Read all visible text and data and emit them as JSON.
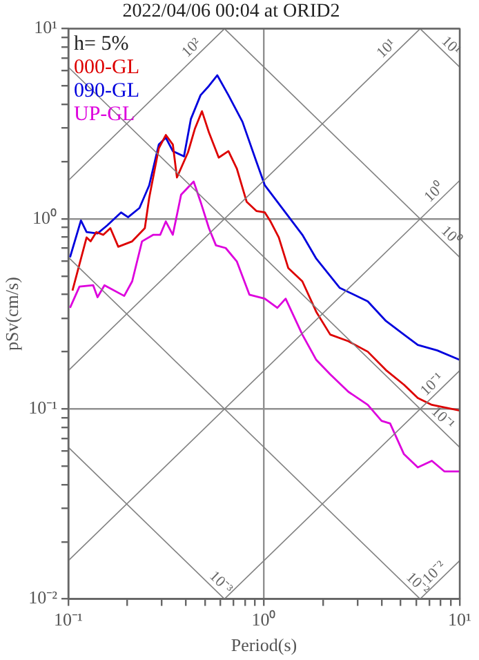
{
  "chart_data": {
    "type": "line",
    "title": "2022/04/06 00:04 at ORID2",
    "xlabel": "Period(s)",
    "ylabel": "pSv(cm/s)",
    "log": "xy",
    "grid": true,
    "legend": "top left",
    "marker": "none",
    "line_style": "solid",
    "xlim": [
      0.1,
      10
    ],
    "ylim": [
      0.01,
      10
    ],
    "xticks": [
      {
        "value": 0.1,
        "label": "10⁻¹"
      },
      {
        "value": 0.2,
        "label": null
      },
      {
        "value": 0.3,
        "label": null
      },
      {
        "value": 0.4,
        "label": null
      },
      {
        "value": 0.5,
        "label": null
      },
      {
        "value": 0.6,
        "label": null
      },
      {
        "value": 0.7,
        "label": null
      },
      {
        "value": 0.8,
        "label": null
      },
      {
        "value": 0.9,
        "label": null
      },
      {
        "value": 1,
        "label": "10⁰"
      },
      {
        "value": 2,
        "label": null
      },
      {
        "value": 3,
        "label": null
      },
      {
        "value": 4,
        "label": null
      },
      {
        "value": 5,
        "label": null
      },
      {
        "value": 6,
        "label": null
      },
      {
        "value": 7,
        "label": null
      },
      {
        "value": 8,
        "label": null
      },
      {
        "value": 9,
        "label": null
      },
      {
        "value": 10,
        "label": "10¹"
      }
    ],
    "yticks": [
      {
        "value": 0.01,
        "label": "10⁻²"
      },
      {
        "value": 0.02,
        "label": null
      },
      {
        "value": 0.03,
        "label": null
      },
      {
        "value": 0.04,
        "label": null
      },
      {
        "value": 0.05,
        "label": null
      },
      {
        "value": 0.06,
        "label": null
      },
      {
        "value": 0.07,
        "label": null
      },
      {
        "value": 0.08,
        "label": null
      },
      {
        "value": 0.09,
        "label": null
      },
      {
        "value": 0.1,
        "label": "10⁻¹"
      },
      {
        "value": 0.2,
        "label": null
      },
      {
        "value": 0.3,
        "label": null
      },
      {
        "value": 0.4,
        "label": null
      },
      {
        "value": 0.5,
        "label": null
      },
      {
        "value": 0.6,
        "label": null
      },
      {
        "value": 0.7,
        "label": null
      },
      {
        "value": 0.8,
        "label": null
      },
      {
        "value": 0.9,
        "label": null
      },
      {
        "value": 1,
        "label": "10⁰"
      },
      {
        "value": 2,
        "label": null
      },
      {
        "value": 3,
        "label": null
      },
      {
        "value": 4,
        "label": null
      },
      {
        "value": 5,
        "label": null
      },
      {
        "value": 6,
        "label": null
      },
      {
        "value": 7,
        "label": null
      },
      {
        "value": 8,
        "label": null
      },
      {
        "value": 9,
        "label": null
      },
      {
        "value": 10,
        "label": "10¹"
      }
    ],
    "annotations": [
      "h= 5%",
      {
        "text": "10²",
        "x": 0.46,
        "y": 7.32
      },
      {
        "text": "10¹",
        "x": 4.55,
        "y": 7.25
      },
      {
        "text": "10¹",
        "x": 8.36,
        "y": 7.51
      },
      {
        "text": "10⁰",
        "x": 8.0,
        "y": 1.27
      },
      {
        "text": "10⁰",
        "x": 8.36,
        "y": 0.751
      },
      {
        "text": "10⁻¹",
        "x": 7.8,
        "y": 0.124
      },
      {
        "text": "10⁻¹",
        "x": 7.6,
        "y": 0.0826
      },
      {
        "text": "10⁻²",
        "x": 8.0,
        "y": 0.0127
      },
      {
        "text": "10⁻²",
        "x": 5.64,
        "y": 0.0111
      },
      {
        "text": "10⁻³",
        "x": 0.558,
        "y": 0.01125
      }
    ],
    "series": [
      {
        "color": "#808080",
        "x": [
          6.28,
          10
        ],
        "values": [
          0.01,
          0.0159
        ]
      },
      {
        "color": "#808080",
        "x": [
          0.628,
          10
        ],
        "values": [
          0.01,
          0.159
        ]
      },
      {
        "color": "#808080",
        "x": [
          0.1,
          10
        ],
        "values": [
          0.0159,
          1.59
        ]
      },
      {
        "color": "#808080",
        "x": [
          0.1,
          6.28
        ],
        "values": [
          0.159,
          10
        ]
      },
      {
        "color": "#808080",
        "x": [
          0.1,
          0.628
        ],
        "values": [
          1.59,
          10
        ]
      },
      {
        "color": "#808080",
        "x": [
          0.1,
          0.628
        ],
        "values": [
          0.0628,
          0.01
        ]
      },
      {
        "color": "#808080",
        "x": [
          0.1,
          6.28
        ],
        "values": [
          0.628,
          0.01
        ]
      },
      {
        "color": "#808080",
        "x": [
          0.1,
          10
        ],
        "values": [
          6.28,
          0.0628
        ]
      },
      {
        "color": "#808080",
        "x": [
          0.628,
          10
        ],
        "values": [
          10,
          0.628
        ]
      },
      {
        "color": "#808080",
        "x": [
          6.28,
          10
        ],
        "values": [
          10,
          6.28
        ]
      },
      {
        "name": "000-GL",
        "color": "#dd0000",
        "x": [
          0.105,
          0.124,
          0.13,
          0.139,
          0.151,
          0.164,
          0.18,
          0.212,
          0.246,
          0.259,
          0.29,
          0.315,
          0.342,
          0.359,
          0.409,
          0.444,
          0.482,
          0.523,
          0.587,
          0.658,
          0.726,
          0.815,
          0.914,
          1.01,
          1.08,
          1.19,
          1.33,
          1.57,
          1.85,
          2.18,
          2.7,
          3.39,
          4.2,
          5.19,
          6.11,
          7.21,
          10
        ],
        "values": [
          0.419,
          0.798,
          0.761,
          0.851,
          0.824,
          0.893,
          0.713,
          0.761,
          0.893,
          1.29,
          2.35,
          2.76,
          2.46,
          1.65,
          2.24,
          2.99,
          3.68,
          2.85,
          2.1,
          2.27,
          1.84,
          1.23,
          1.1,
          1.08,
          0.968,
          0.798,
          0.551,
          0.469,
          0.324,
          0.246,
          0.227,
          0.2,
          0.16,
          0.134,
          0.114,
          0.105,
          0.098
        ]
      },
      {
        "name": "090-GL",
        "color": "#0000dd",
        "x": [
          0.102,
          0.116,
          0.124,
          0.141,
          0.158,
          0.186,
          0.202,
          0.231,
          0.259,
          0.29,
          0.315,
          0.342,
          0.39,
          0.423,
          0.474,
          0.523,
          0.577,
          0.658,
          0.776,
          0.914,
          1.01,
          1.27,
          1.57,
          1.85,
          2.44,
          3.39,
          4.2,
          5.19,
          6.11,
          7.69,
          10
        ],
        "values": [
          0.627,
          0.98,
          0.851,
          0.838,
          0.923,
          1.08,
          1.02,
          1.14,
          1.5,
          2.46,
          2.67,
          2.27,
          2.13,
          3.35,
          4.47,
          5.0,
          5.69,
          4.47,
          3.24,
          2.0,
          1.5,
          1.1,
          0.824,
          0.617,
          0.433,
          0.368,
          0.29,
          0.246,
          0.217,
          0.203,
          0.181
        ]
      },
      {
        "name": "UP-GL",
        "color": "#dd00dd",
        "x": [
          0.102,
          0.114,
          0.134,
          0.141,
          0.153,
          0.193,
          0.212,
          0.238,
          0.272,
          0.295,
          0.315,
          0.342,
          0.377,
          0.437,
          0.474,
          0.523,
          0.568,
          0.637,
          0.726,
          0.842,
          1.01,
          1.17,
          1.29,
          1.57,
          1.85,
          2.18,
          2.7,
          3.39,
          3.99,
          4.41,
          5.19,
          6.11,
          7.21,
          8.35,
          10
        ],
        "values": [
          0.34,
          0.44,
          0.447,
          0.387,
          0.447,
          0.393,
          0.469,
          0.761,
          0.824,
          0.824,
          0.968,
          0.824,
          1.34,
          1.57,
          1.23,
          0.893,
          0.725,
          0.702,
          0.597,
          0.399,
          0.38,
          0.34,
          0.38,
          0.246,
          0.181,
          0.152,
          0.123,
          0.105,
          0.0865,
          0.0838,
          0.0578,
          0.0492,
          0.0533,
          0.0469,
          0.0469
        ]
      }
    ]
  }
}
